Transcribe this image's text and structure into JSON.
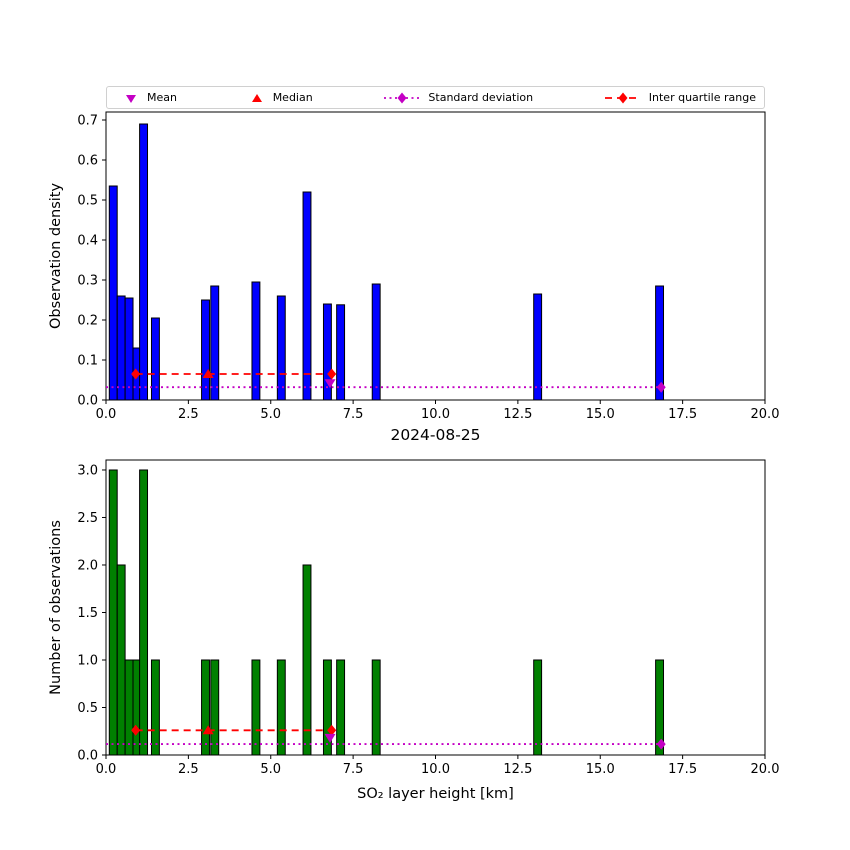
{
  "figure": {
    "background": "#ffffff"
  },
  "palette": {
    "bar_density": "#0000ff",
    "bar_counts": "#008000",
    "bar_edge": "#000000",
    "magenta": "#c400c4",
    "red": "#ff0000",
    "axis": "#000000",
    "legend_border": "#d0d0d0"
  },
  "legend": {
    "items": [
      {
        "label": "Mean",
        "marker": "triangle-down",
        "color": "#c400c4"
      },
      {
        "label": "Median",
        "marker": "triangle-up",
        "color": "#ff0000"
      },
      {
        "label": "Standard deviation",
        "marker": "diamond-with-dotted-line",
        "color": "#c400c4"
      },
      {
        "label": "Inter quartile range",
        "marker": "diamond-with-dashed-line",
        "color": "#ff0000"
      }
    ]
  },
  "chart_data": [
    {
      "type": "bar",
      "name": "density",
      "title": "",
      "xlabel": "",
      "ylabel": "Observation density",
      "xlim": [
        0,
        20
      ],
      "ylim": [
        0,
        0.72
      ],
      "xticks": [
        0.0,
        2.5,
        5.0,
        7.5,
        10.0,
        12.5,
        15.0,
        17.5,
        20.0
      ],
      "yticks": [
        0.0,
        0.1,
        0.2,
        0.3,
        0.4,
        0.5,
        0.6,
        0.7
      ],
      "bar_color": "#0000ff",
      "bar_width": 0.24,
      "x": [
        0.22,
        0.46,
        0.7,
        0.94,
        1.14,
        1.5,
        3.02,
        3.3,
        4.55,
        5.32,
        6.1,
        6.72,
        7.12,
        8.2,
        13.1,
        16.8
      ],
      "values": [
        0.535,
        0.26,
        0.255,
        0.13,
        0.69,
        0.205,
        0.25,
        0.285,
        0.295,
        0.26,
        0.52,
        0.24,
        0.238,
        0.29,
        0.265,
        0.285
      ],
      "stats": {
        "mean": {
          "x": 6.8,
          "y": 0.042
        },
        "median": {
          "x": 3.1,
          "y": 0.065
        },
        "iqr": {
          "x1": 0.9,
          "x2": 6.85,
          "y": 0.065
        },
        "std": {
          "x1": 0.0,
          "x2": 16.85,
          "y": 0.032
        }
      }
    },
    {
      "type": "bar",
      "name": "counts",
      "title": "2024-08-25",
      "xlabel": "SO₂ layer height [km]",
      "ylabel": "Number of observations",
      "xlim": [
        0,
        20
      ],
      "ylim": [
        0,
        3.105
      ],
      "xticks": [
        0.0,
        2.5,
        5.0,
        7.5,
        10.0,
        12.5,
        15.0,
        17.5,
        20.0
      ],
      "yticks": [
        0.0,
        0.5,
        1.0,
        1.5,
        2.0,
        2.5,
        3.0
      ],
      "bar_color": "#008000",
      "bar_width": 0.24,
      "x": [
        0.22,
        0.46,
        0.7,
        0.94,
        1.14,
        1.5,
        3.02,
        3.3,
        4.55,
        5.32,
        6.1,
        6.72,
        7.12,
        8.2,
        13.1,
        16.8
      ],
      "values": [
        3,
        2,
        1,
        1,
        3,
        1,
        1,
        1,
        1,
        1,
        2,
        1,
        1,
        1,
        1,
        1
      ],
      "stats": {
        "mean": {
          "x": 6.8,
          "y": 0.18
        },
        "median": {
          "x": 3.1,
          "y": 0.26
        },
        "iqr": {
          "x1": 0.9,
          "x2": 6.85,
          "y": 0.26
        },
        "std": {
          "x1": 0.0,
          "x2": 16.85,
          "y": 0.115
        }
      }
    }
  ]
}
